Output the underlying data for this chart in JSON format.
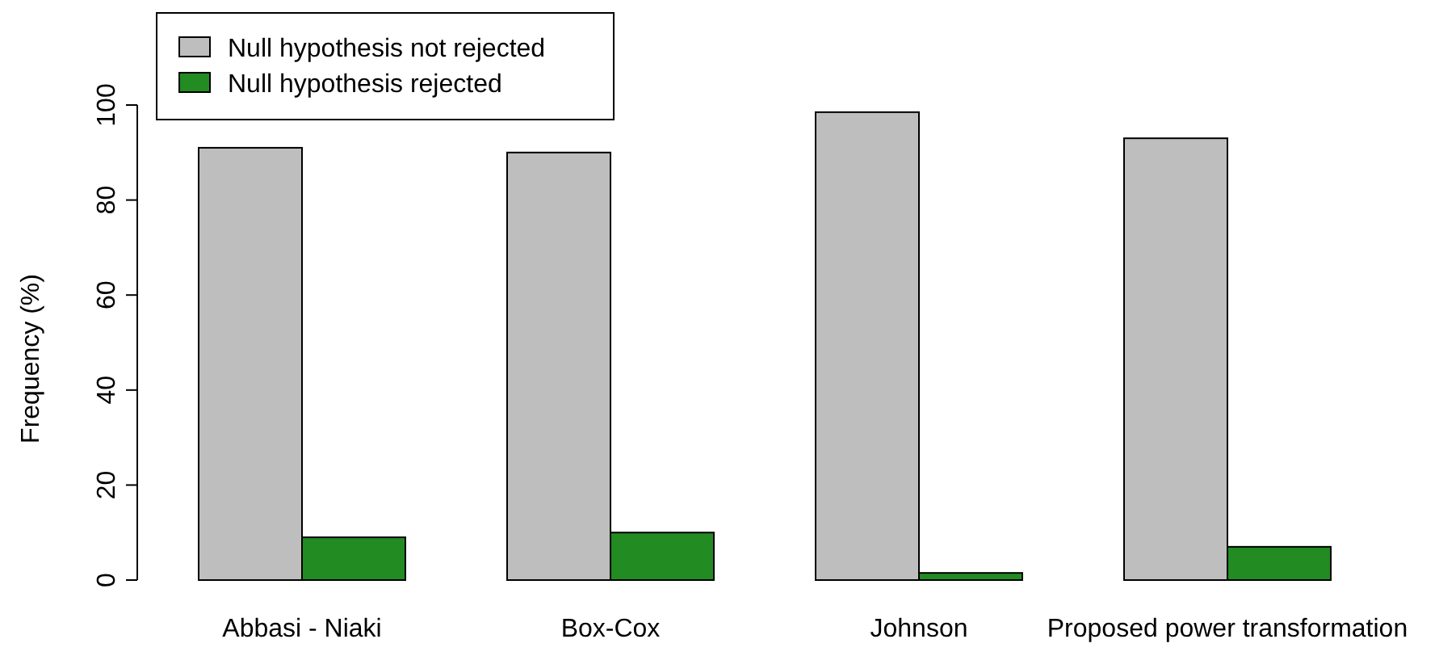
{
  "chart_data": {
    "type": "bar",
    "ylabel": "Frequency (%)",
    "categories": [
      "Abbasi - Niaki",
      "Box-Cox",
      "Johnson",
      "Proposed power transformation"
    ],
    "series": [
      {
        "name": "Null hypothesis not rejected",
        "color": "#bebebe",
        "values": [
          91,
          90,
          98.5,
          93
        ]
      },
      {
        "name": "Null hypothesis rejected",
        "color": "#228b22",
        "values": [
          9,
          10,
          1.5,
          7
        ]
      }
    ],
    "ylim": [
      0,
      100
    ],
    "yticks": [
      0,
      20,
      40,
      60,
      80,
      100
    ],
    "legend": "top left",
    "grid": false
  }
}
